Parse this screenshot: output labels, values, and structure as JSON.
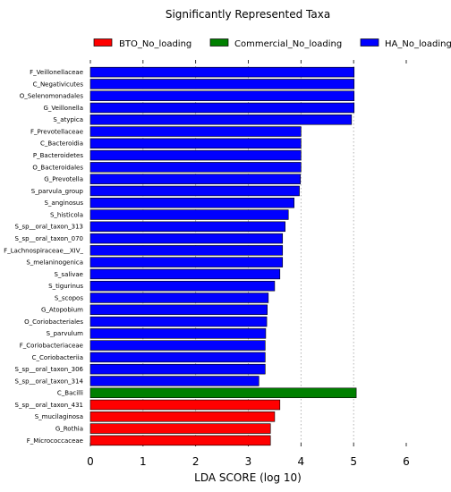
{
  "chart_data": {
    "type": "bar",
    "orientation": "horizontal",
    "title": "Significantly Represented Taxa",
    "xlabel": "LDA SCORE (log 10)",
    "ylabel": "",
    "xlim": [
      0,
      6
    ],
    "xticks": [
      "0",
      "1",
      "2",
      "3",
      "4",
      "5",
      "6"
    ],
    "grid": "vertical-dotted",
    "legend_position": "top",
    "legend": [
      {
        "name": "BTO_No_loading",
        "color": "#ff0000"
      },
      {
        "name": "Commercial_No_loading",
        "color": "#008000"
      },
      {
        "name": "HA_No_loading",
        "color": "#0000ff"
      }
    ],
    "bars": [
      {
        "label": "F_Veillonellaceae",
        "value": 5.01,
        "group": 2
      },
      {
        "label": "C_Negativicutes",
        "value": 5.01,
        "group": 2
      },
      {
        "label": "O_Selenomonadales",
        "value": 5.01,
        "group": 2
      },
      {
        "label": "G_Veillonella",
        "value": 5.01,
        "group": 2
      },
      {
        "label": "S_atypica",
        "value": 4.96,
        "group": 2
      },
      {
        "label": "F_Prevotellaceae",
        "value": 4.0,
        "group": 2
      },
      {
        "label": "C_Bacteroidia",
        "value": 4.0,
        "group": 2
      },
      {
        "label": "P_Bacteroidetes",
        "value": 4.0,
        "group": 2
      },
      {
        "label": "O_Bacteroidales",
        "value": 4.0,
        "group": 2
      },
      {
        "label": "G_Prevotella",
        "value": 3.99,
        "group": 2
      },
      {
        "label": "S_parvula_group",
        "value": 3.97,
        "group": 2
      },
      {
        "label": "S_anginosus",
        "value": 3.87,
        "group": 2
      },
      {
        "label": "S_histicola",
        "value": 3.76,
        "group": 2
      },
      {
        "label": "S_sp__oral_taxon_313",
        "value": 3.7,
        "group": 2
      },
      {
        "label": "S_sp__oral_taxon_070",
        "value": 3.65,
        "group": 2
      },
      {
        "label": "F_Lachnospiraceae__XIV_",
        "value": 3.65,
        "group": 2
      },
      {
        "label": "S_melaninogenica",
        "value": 3.65,
        "group": 2
      },
      {
        "label": "S_salivae",
        "value": 3.6,
        "group": 2
      },
      {
        "label": "S_tigurinus",
        "value": 3.5,
        "group": 2
      },
      {
        "label": "S_scopos",
        "value": 3.38,
        "group": 2
      },
      {
        "label": "G_Atopobium",
        "value": 3.36,
        "group": 2
      },
      {
        "label": "O_Coriobacteriales",
        "value": 3.35,
        "group": 2
      },
      {
        "label": "S_parvulum",
        "value": 3.33,
        "group": 2
      },
      {
        "label": "F_Coriobacteriaceae",
        "value": 3.32,
        "group": 2
      },
      {
        "label": "C_Coriobacteriia",
        "value": 3.32,
        "group": 2
      },
      {
        "label": "S_sp__oral_taxon_306",
        "value": 3.32,
        "group": 2
      },
      {
        "label": "S_sp__oral_taxon_314",
        "value": 3.2,
        "group": 2
      },
      {
        "label": "C_Bacilli",
        "value": 5.05,
        "group": 1
      },
      {
        "label": "S_sp__oral_taxon_431",
        "value": 3.6,
        "group": 0
      },
      {
        "label": "S_mucilaginosa",
        "value": 3.5,
        "group": 0
      },
      {
        "label": "G_Rothia",
        "value": 3.42,
        "group": 0
      },
      {
        "label": "F_Micrococcaceae",
        "value": 3.42,
        "group": 0
      }
    ]
  }
}
